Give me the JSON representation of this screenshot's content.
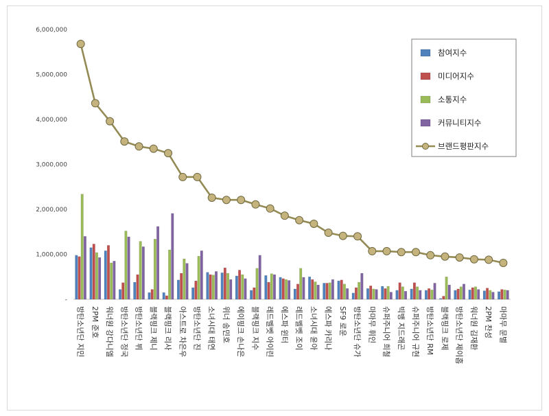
{
  "chart_data": {
    "type": "bar",
    "title": "",
    "xlabel": "",
    "ylabel": "",
    "ylim": [
      0,
      6000000
    ],
    "yticks": [
      "-",
      "1,000,000",
      "2,000,000",
      "3,000,000",
      "4,000,000",
      "5,000,000",
      "6,000,000"
    ],
    "grid": false,
    "legend_position": "top-right",
    "categories": [
      "방탄소년단 지민",
      "2PM 준호",
      "워너원 강다니엘",
      "방탄소년단 정국",
      "방탄소년단 뷔",
      "블랙핑크 제니",
      "블랙핑크 리사",
      "아스트로 차은우",
      "방탄소년단 진",
      "소녀시대 태연",
      "위너 송민호",
      "에이핑크 손나은",
      "블랙핑크 지수",
      "레드벨벳 아이린",
      "에스파 윈터",
      "레드벨벳 조이",
      "소녀시대 윤아",
      "에스파 카리나",
      "SF9 로운",
      "방탄소년단 슈가",
      "마마무 휘인",
      "슈퍼주니어 희철",
      "빅뱅 지드래곤",
      "슈퍼주니어 규현",
      "방탄소년단 RM",
      "블랙핑크 로제",
      "방탄소년단 제이홉",
      "워너원 김재환",
      "2PM 찬성",
      "마마무 문별"
    ],
    "series": [
      {
        "name": "참여지수",
        "color": "#4f81bd",
        "kind": "bar",
        "values": [
          980000,
          1150000,
          1080000,
          220000,
          380000,
          150000,
          150000,
          430000,
          260000,
          600000,
          590000,
          520000,
          200000,
          530000,
          490000,
          230000,
          500000,
          360000,
          410000,
          140000,
          240000,
          290000,
          200000,
          230000,
          200000,
          20000,
          200000,
          210000,
          190000,
          170000
        ]
      },
      {
        "name": "미디어지수",
        "color": "#c0504d",
        "kind": "bar",
        "values": [
          950000,
          1230000,
          1200000,
          370000,
          550000,
          220000,
          80000,
          580000,
          410000,
          550000,
          700000,
          650000,
          260000,
          380000,
          460000,
          340000,
          440000,
          360000,
          430000,
          260000,
          300000,
          240000,
          370000,
          370000,
          240000,
          70000,
          230000,
          260000,
          250000,
          220000
        ]
      },
      {
        "name": "소통지수",
        "color": "#9bbb59",
        "kind": "bar",
        "values": [
          2340000,
          1040000,
          810000,
          1520000,
          1290000,
          1340000,
          1100000,
          900000,
          960000,
          540000,
          580000,
          550000,
          690000,
          570000,
          440000,
          690000,
          390000,
          370000,
          340000,
          380000,
          230000,
          290000,
          280000,
          280000,
          210000,
          500000,
          280000,
          280000,
          200000,
          210000
        ]
      },
      {
        "name": "커뮤니티지수",
        "color": "#8064a2",
        "kind": "bar",
        "values": [
          1400000,
          930000,
          850000,
          1390000,
          1170000,
          1620000,
          1910000,
          800000,
          1080000,
          620000,
          440000,
          460000,
          980000,
          550000,
          420000,
          490000,
          320000,
          440000,
          240000,
          580000,
          220000,
          160000,
          180000,
          200000,
          360000,
          320000,
          340000,
          220000,
          160000,
          200000
        ]
      },
      {
        "name": "브랜드평판지수",
        "color": "#948a54",
        "kind": "line",
        "values": [
          5680000,
          4360000,
          3960000,
          3510000,
          3400000,
          3350000,
          3250000,
          2720000,
          2720000,
          2260000,
          2210000,
          2210000,
          2110000,
          2020000,
          1860000,
          1760000,
          1680000,
          1480000,
          1410000,
          1400000,
          1070000,
          1070000,
          1050000,
          1050000,
          980000,
          950000,
          930000,
          890000,
          880000,
          810000
        ]
      }
    ]
  }
}
